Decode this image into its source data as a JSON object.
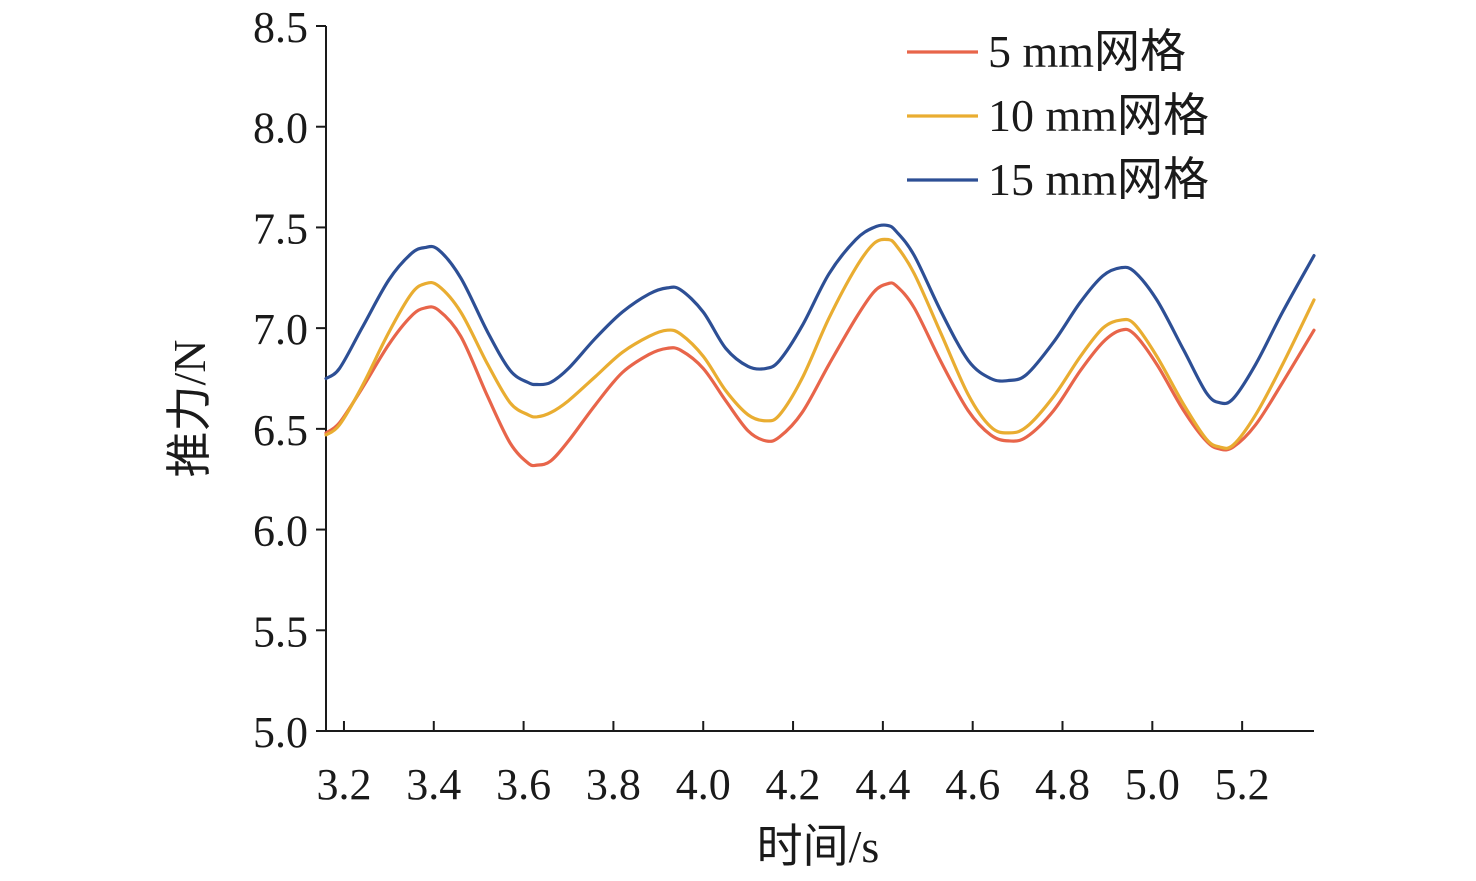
{
  "chart_data": {
    "type": "line",
    "title": "",
    "xlabel": "时间/s",
    "ylabel": "推力/N",
    "xlim": [
      3.16,
      5.36
    ],
    "ylim": [
      5.0,
      8.5
    ],
    "xticks": [
      3.2,
      3.4,
      3.6,
      3.8,
      4.0,
      4.2,
      4.4,
      4.6,
      4.8,
      5.0,
      5.2
    ],
    "xtick_labels": [
      "3.2",
      "3.4",
      "3.6",
      "3.8",
      "4.0",
      "4.2",
      "4.4",
      "4.6",
      "4.8",
      "5.0",
      "5.2"
    ],
    "yticks": [
      5.0,
      5.5,
      6.0,
      6.5,
      7.0,
      7.5,
      8.0,
      8.5
    ],
    "ytick_labels": [
      "5.0",
      "5.5",
      "6.0",
      "6.5",
      "7.0",
      "7.5",
      "8.0",
      "8.5"
    ],
    "grid": false,
    "legend_position": "top-right",
    "series": [
      {
        "name": "5 mm网格",
        "color": "#e8654a",
        "points": [
          [
            3.16,
            6.48
          ],
          [
            3.19,
            6.53
          ],
          [
            3.24,
            6.7
          ],
          [
            3.3,
            6.92
          ],
          [
            3.35,
            7.06
          ],
          [
            3.38,
            7.1
          ],
          [
            3.41,
            7.09
          ],
          [
            3.46,
            6.96
          ],
          [
            3.52,
            6.66
          ],
          [
            3.57,
            6.43
          ],
          [
            3.61,
            6.33
          ],
          [
            3.63,
            6.32
          ],
          [
            3.66,
            6.34
          ],
          [
            3.7,
            6.44
          ],
          [
            3.76,
            6.62
          ],
          [
            3.82,
            6.78
          ],
          [
            3.88,
            6.87
          ],
          [
            3.92,
            6.9
          ],
          [
            3.95,
            6.89
          ],
          [
            4.0,
            6.8
          ],
          [
            4.05,
            6.64
          ],
          [
            4.1,
            6.49
          ],
          [
            4.14,
            6.44
          ],
          [
            4.17,
            6.46
          ],
          [
            4.22,
            6.58
          ],
          [
            4.28,
            6.82
          ],
          [
            4.34,
            7.05
          ],
          [
            4.38,
            7.18
          ],
          [
            4.41,
            7.22
          ],
          [
            4.43,
            7.21
          ],
          [
            4.47,
            7.1
          ],
          [
            4.53,
            6.83
          ],
          [
            4.59,
            6.59
          ],
          [
            4.64,
            6.47
          ],
          [
            4.68,
            6.44
          ],
          [
            4.72,
            6.46
          ],
          [
            4.78,
            6.59
          ],
          [
            4.84,
            6.79
          ],
          [
            4.89,
            6.93
          ],
          [
            4.93,
            6.99
          ],
          [
            4.96,
            6.97
          ],
          [
            5.01,
            6.82
          ],
          [
            5.07,
            6.59
          ],
          [
            5.12,
            6.44
          ],
          [
            5.15,
            6.4
          ],
          [
            5.18,
            6.41
          ],
          [
            5.23,
            6.52
          ],
          [
            5.29,
            6.73
          ],
          [
            5.36,
            6.99
          ]
        ]
      },
      {
        "name": "10 mm网格",
        "color": "#e9ad31",
        "points": [
          [
            3.16,
            6.47
          ],
          [
            3.19,
            6.52
          ],
          [
            3.24,
            6.71
          ],
          [
            3.3,
            6.98
          ],
          [
            3.35,
            7.17
          ],
          [
            3.38,
            7.22
          ],
          [
            3.41,
            7.21
          ],
          [
            3.46,
            7.08
          ],
          [
            3.52,
            6.82
          ],
          [
            3.57,
            6.63
          ],
          [
            3.61,
            6.57
          ],
          [
            3.63,
            6.56
          ],
          [
            3.66,
            6.58
          ],
          [
            3.7,
            6.64
          ],
          [
            3.76,
            6.76
          ],
          [
            3.82,
            6.88
          ],
          [
            3.88,
            6.96
          ],
          [
            3.92,
            6.99
          ],
          [
            3.95,
            6.97
          ],
          [
            4.0,
            6.86
          ],
          [
            4.05,
            6.69
          ],
          [
            4.1,
            6.57
          ],
          [
            4.14,
            6.54
          ],
          [
            4.17,
            6.57
          ],
          [
            4.22,
            6.75
          ],
          [
            4.28,
            7.05
          ],
          [
            4.34,
            7.3
          ],
          [
            4.38,
            7.42
          ],
          [
            4.41,
            7.44
          ],
          [
            4.43,
            7.41
          ],
          [
            4.47,
            7.27
          ],
          [
            4.53,
            6.97
          ],
          [
            4.59,
            6.67
          ],
          [
            4.64,
            6.51
          ],
          [
            4.68,
            6.48
          ],
          [
            4.72,
            6.51
          ],
          [
            4.78,
            6.66
          ],
          [
            4.84,
            6.86
          ],
          [
            4.89,
            7.0
          ],
          [
            4.93,
            7.04
          ],
          [
            4.96,
            7.02
          ],
          [
            5.01,
            6.86
          ],
          [
            5.07,
            6.62
          ],
          [
            5.12,
            6.45
          ],
          [
            5.15,
            6.41
          ],
          [
            5.18,
            6.42
          ],
          [
            5.23,
            6.57
          ],
          [
            5.29,
            6.82
          ],
          [
            5.36,
            7.14
          ]
        ]
      },
      {
        "name": "15 mm网格",
        "color": "#2d4f95",
        "points": [
          [
            3.16,
            6.75
          ],
          [
            3.19,
            6.8
          ],
          [
            3.24,
            7.0
          ],
          [
            3.3,
            7.24
          ],
          [
            3.35,
            7.37
          ],
          [
            3.38,
            7.4
          ],
          [
            3.41,
            7.39
          ],
          [
            3.46,
            7.25
          ],
          [
            3.52,
            6.98
          ],
          [
            3.57,
            6.79
          ],
          [
            3.61,
            6.73
          ],
          [
            3.63,
            6.72
          ],
          [
            3.66,
            6.73
          ],
          [
            3.7,
            6.8
          ],
          [
            3.76,
            6.95
          ],
          [
            3.82,
            7.08
          ],
          [
            3.88,
            7.17
          ],
          [
            3.92,
            7.2
          ],
          [
            3.95,
            7.19
          ],
          [
            4.0,
            7.08
          ],
          [
            4.05,
            6.9
          ],
          [
            4.1,
            6.81
          ],
          [
            4.14,
            6.8
          ],
          [
            4.17,
            6.84
          ],
          [
            4.22,
            7.01
          ],
          [
            4.28,
            7.27
          ],
          [
            4.34,
            7.44
          ],
          [
            4.38,
            7.5
          ],
          [
            4.41,
            7.51
          ],
          [
            4.43,
            7.48
          ],
          [
            4.47,
            7.36
          ],
          [
            4.53,
            7.08
          ],
          [
            4.59,
            6.84
          ],
          [
            4.64,
            6.75
          ],
          [
            4.68,
            6.74
          ],
          [
            4.72,
            6.77
          ],
          [
            4.78,
            6.93
          ],
          [
            4.84,
            7.13
          ],
          [
            4.89,
            7.26
          ],
          [
            4.93,
            7.3
          ],
          [
            4.96,
            7.28
          ],
          [
            5.01,
            7.14
          ],
          [
            5.07,
            6.89
          ],
          [
            5.12,
            6.68
          ],
          [
            5.15,
            6.63
          ],
          [
            5.18,
            6.65
          ],
          [
            5.23,
            6.82
          ],
          [
            5.29,
            7.08
          ],
          [
            5.36,
            7.36
          ]
        ]
      }
    ]
  }
}
